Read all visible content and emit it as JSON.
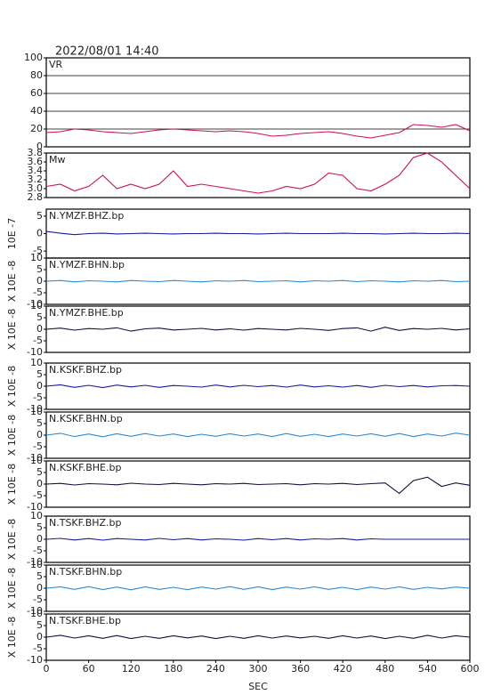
{
  "chart_data": [
    {
      "type": "line",
      "title": "2022/08/01  14:40",
      "x": [
        0,
        20,
        40,
        60,
        80,
        100,
        120,
        140,
        160,
        180,
        200,
        220,
        240,
        260,
        280,
        300,
        320,
        340,
        360,
        380,
        400,
        420,
        440,
        460,
        480,
        500,
        520,
        540,
        560,
        580,
        600
      ],
      "series": [
        {
          "name": "VR",
          "color": "#d0104c",
          "values": [
            16,
            17,
            20,
            19,
            17,
            16,
            15,
            17,
            19,
            20,
            19,
            18,
            17,
            18,
            17,
            15,
            12,
            13,
            15,
            16,
            17,
            15,
            12,
            10,
            13,
            16,
            25,
            24,
            22,
            25,
            18
          ]
        }
      ],
      "xlim": [
        0,
        600
      ],
      "ylim": [
        0,
        100
      ],
      "yticks": [
        0,
        20,
        40,
        60,
        80,
        100
      ],
      "grid": true
    },
    {
      "type": "line",
      "x": [
        0,
        20,
        40,
        60,
        80,
        100,
        120,
        140,
        160,
        180,
        200,
        220,
        240,
        260,
        280,
        300,
        320,
        340,
        360,
        380,
        400,
        420,
        440,
        460,
        480,
        500,
        520,
        540,
        560,
        580,
        600
      ],
      "series": [
        {
          "name": "Mw",
          "color": "#d0104c",
          "values": [
            3.05,
            3.1,
            2.95,
            3.05,
            3.3,
            3.0,
            3.1,
            3.0,
            3.1,
            3.4,
            3.05,
            3.1,
            3.05,
            3.0,
            2.95,
            2.9,
            2.95,
            3.05,
            3.0,
            3.1,
            3.35,
            3.3,
            3.0,
            2.95,
            3.1,
            3.3,
            3.7,
            3.8,
            3.6,
            3.3,
            3.0
          ]
        }
      ],
      "xlim": [
        0,
        600
      ],
      "ylim": [
        2.8,
        3.8
      ],
      "yticks": [
        2.8,
        {
          "value": 3,
          "label": "3.0"
        },
        3.2,
        3.4,
        3.6,
        3.8
      ]
    },
    {
      "type": "line",
      "ylabel": "10E -7",
      "x": [
        0,
        20,
        40,
        60,
        80,
        100,
        120,
        140,
        160,
        180,
        200,
        220,
        240,
        260,
        280,
        300,
        320,
        340,
        360,
        380,
        400,
        420,
        440,
        460,
        480,
        500,
        520,
        540,
        560,
        580,
        600
      ],
      "series": [
        {
          "name": "N.YMZF.BHZ.bp",
          "color": "#1a1aa0",
          "values": [
            0.6,
            0.1,
            -0.3,
            0,
            0.1,
            -0.1,
            0,
            0.1,
            0,
            -0.1,
            0,
            0,
            0.1,
            0,
            0,
            -0.1,
            0,
            0.1,
            0,
            0,
            0,
            0.1,
            0,
            0,
            -0.1,
            0,
            0.1,
            0,
            0,
            0.1,
            0
          ]
        }
      ],
      "xlim": [
        0,
        600
      ],
      "ylim": [
        -7,
        7
      ],
      "yticks": [
        -5,
        0,
        5
      ]
    },
    {
      "type": "line",
      "ylabel": "X 10E -8",
      "x": [
        0,
        20,
        40,
        60,
        80,
        100,
        120,
        140,
        160,
        180,
        200,
        220,
        240,
        260,
        280,
        300,
        320,
        340,
        360,
        380,
        400,
        420,
        440,
        460,
        480,
        500,
        520,
        540,
        560,
        580,
        600
      ],
      "series": [
        {
          "name": "N.YMZF.BHN.bp",
          "color": "#2a8ad8",
          "values": [
            0,
            0.3,
            -0.3,
            0.2,
            0,
            -0.3,
            0.3,
            0,
            -0.2,
            0.3,
            0,
            -0.3,
            0.2,
            0,
            0.3,
            -0.2,
            0,
            0.2,
            -0.3,
            0.2,
            0,
            0.3,
            -0.2,
            0.2,
            0,
            -0.3,
            0.2,
            0,
            0.3,
            -0.2,
            0
          ]
        }
      ],
      "xlim": [
        0,
        600
      ],
      "ylim": [
        -10,
        10
      ],
      "yticks": [
        -10,
        -5,
        0,
        5,
        10
      ]
    },
    {
      "type": "line",
      "ylabel": "X 10E -8",
      "x": [
        0,
        20,
        40,
        60,
        80,
        100,
        120,
        140,
        160,
        180,
        200,
        220,
        240,
        260,
        280,
        300,
        320,
        340,
        360,
        380,
        400,
        420,
        440,
        460,
        480,
        500,
        520,
        540,
        560,
        580,
        600
      ],
      "series": [
        {
          "name": "N.YMZF.BHE.bp",
          "color": "#101040",
          "values": [
            0,
            0.5,
            -0.4,
            0.3,
            0,
            0.6,
            -0.8,
            0.2,
            0.5,
            -0.3,
            0,
            0.4,
            -0.3,
            0.2,
            -0.4,
            0.3,
            0,
            -0.3,
            0.4,
            0,
            -0.5,
            0.3,
            0.6,
            -0.8,
            0.9,
            -0.5,
            0.3,
            0,
            0.4,
            -0.3,
            0.2
          ]
        }
      ],
      "xlim": [
        0,
        600
      ],
      "ylim": [
        -10,
        10
      ],
      "yticks": [
        -10,
        -5,
        0,
        5,
        10
      ]
    },
    {
      "type": "line",
      "ylabel": "X 10E -8",
      "x": [
        0,
        20,
        40,
        60,
        80,
        100,
        120,
        140,
        160,
        180,
        200,
        220,
        240,
        260,
        280,
        300,
        320,
        340,
        360,
        380,
        400,
        420,
        440,
        460,
        480,
        500,
        520,
        540,
        560,
        580,
        600
      ],
      "series": [
        {
          "name": "N.KSKF.BHZ.bp",
          "color": "#1a1aa0",
          "values": [
            0,
            0.6,
            -0.5,
            0.4,
            -0.6,
            0.5,
            -0.3,
            0.4,
            -0.5,
            0.3,
            0,
            -0.4,
            0.5,
            -0.3,
            0.4,
            -0.2,
            0.3,
            -0.4,
            0.5,
            -0.3,
            0.2,
            -0.4,
            0.3,
            -0.5,
            0.4,
            -0.2,
            0.3,
            -0.3,
            0.2,
            0.3,
            0
          ]
        }
      ],
      "xlim": [
        0,
        600
      ],
      "ylim": [
        -10,
        10
      ],
      "yticks": [
        -10,
        -5,
        0,
        5,
        10
      ]
    },
    {
      "type": "line",
      "ylabel": "X 10E -8",
      "x": [
        0,
        20,
        40,
        60,
        80,
        100,
        120,
        140,
        160,
        180,
        200,
        220,
        240,
        260,
        280,
        300,
        320,
        340,
        360,
        380,
        400,
        420,
        440,
        460,
        480,
        500,
        520,
        540,
        560,
        580,
        600
      ],
      "series": [
        {
          "name": "N.KSKF.BHN.bp",
          "color": "#2a8ad8",
          "values": [
            0,
            0.8,
            -0.6,
            0.5,
            -0.7,
            0.6,
            -0.5,
            0.7,
            -0.4,
            0.5,
            -0.6,
            0.4,
            -0.5,
            0.6,
            -0.4,
            0.5,
            -0.6,
            0.7,
            -0.5,
            0.4,
            -0.6,
            0.5,
            -0.4,
            0.6,
            -0.5,
            0.7,
            -0.6,
            0.5,
            -0.4,
            0.9,
            0
          ]
        }
      ],
      "xlim": [
        0,
        600
      ],
      "ylim": [
        -10,
        10
      ],
      "yticks": [
        -10,
        -5,
        0,
        5,
        10
      ]
    },
    {
      "type": "line",
      "ylabel": "X 10E -8",
      "x": [
        0,
        20,
        40,
        60,
        80,
        100,
        120,
        140,
        160,
        180,
        200,
        220,
        240,
        260,
        280,
        300,
        320,
        340,
        360,
        380,
        400,
        420,
        440,
        460,
        480,
        500,
        520,
        540,
        560,
        580,
        600
      ],
      "series": [
        {
          "name": "N.KSKF.BHE.bp",
          "color": "#101040",
          "values": [
            0,
            0.3,
            -0.4,
            0.2,
            0,
            -0.3,
            0.4,
            0,
            -0.2,
            0.3,
            0,
            -0.3,
            0.2,
            0,
            0.3,
            -0.2,
            0,
            0.2,
            -0.3,
            0.2,
            0,
            0.3,
            -0.2,
            0.2,
            0.5,
            -4,
            1.5,
            3,
            -1,
            0.5,
            -0.5
          ]
        }
      ],
      "xlim": [
        0,
        600
      ],
      "ylim": [
        -10,
        10
      ],
      "yticks": [
        -10,
        -5,
        0,
        5,
        10
      ]
    },
    {
      "type": "line",
      "ylabel": "X 10E -8",
      "x": [
        0,
        20,
        40,
        60,
        80,
        100,
        120,
        140,
        160,
        180,
        200,
        220,
        240,
        260,
        280,
        300,
        320,
        340,
        360,
        380,
        400,
        420,
        440,
        460,
        480,
        500,
        520,
        540,
        560,
        580,
        600
      ],
      "series": [
        {
          "name": "N.TSKF.BHZ.bp",
          "color": "#1a1aa0",
          "values": [
            0,
            0.4,
            -0.3,
            0.3,
            -0.4,
            0.3,
            0,
            -0.3,
            0.4,
            -0.2,
            0.3,
            -0.3,
            0.2,
            0,
            -0.4,
            0.3,
            -0.2,
            0.3,
            -0.3,
            0.2,
            0,
            0.3,
            -0.3,
            0.2,
            0,
            0,
            0,
            0,
            0,
            0,
            0
          ]
        }
      ],
      "xlim": [
        0,
        600
      ],
      "ylim": [
        -10,
        10
      ],
      "yticks": [
        -10,
        -5,
        0,
        5,
        10
      ]
    },
    {
      "type": "line",
      "ylabel": "X 10E -8",
      "x": [
        0,
        20,
        40,
        60,
        80,
        100,
        120,
        140,
        160,
        180,
        200,
        220,
        240,
        260,
        280,
        300,
        320,
        340,
        360,
        380,
        400,
        420,
        440,
        460,
        480,
        500,
        520,
        540,
        560,
        580,
        600
      ],
      "series": [
        {
          "name": "N.TSKF.BHN.bp",
          "color": "#2a8ad8",
          "values": [
            0,
            0.6,
            -0.5,
            0.7,
            -0.6,
            0.5,
            -0.7,
            0.6,
            -0.5,
            0.4,
            -0.6,
            0.5,
            -0.4,
            0.7,
            -0.5,
            0.6,
            -0.6,
            0.5,
            -0.4,
            0.6,
            -0.5,
            0.4,
            -0.6,
            0.5,
            -0.4,
            0.6,
            -0.5,
            0.4,
            -0.3,
            0.5,
            0
          ]
        }
      ],
      "xlim": [
        0,
        600
      ],
      "ylim": [
        -10,
        10
      ],
      "yticks": [
        -10,
        -5,
        0,
        5,
        10
      ]
    },
    {
      "type": "line",
      "ylabel": "X 10E -8",
      "xlabel": "SEC",
      "x": [
        0,
        20,
        40,
        60,
        80,
        100,
        120,
        140,
        160,
        180,
        200,
        220,
        240,
        260,
        280,
        300,
        320,
        340,
        360,
        380,
        400,
        420,
        440,
        460,
        480,
        500,
        520,
        540,
        560,
        580,
        600
      ],
      "series": [
        {
          "name": "N.TSKF.BHE.bp",
          "color": "#101040",
          "values": [
            0,
            0.8,
            -0.4,
            0.6,
            -0.5,
            0.7,
            -0.6,
            0.4,
            -0.5,
            0.6,
            -0.3,
            0.5,
            -0.6,
            0.4,
            -0.5,
            0.6,
            -0.4,
            0.5,
            -0.3,
            0.4,
            -0.5,
            0.6,
            -0.4,
            0.5,
            -0.6,
            0.4,
            -0.5,
            0.8,
            -0.4,
            0.6,
            0
          ]
        }
      ],
      "xlim": [
        0,
        600
      ],
      "ylim": [
        -10,
        10
      ],
      "xticks": [
        0,
        60,
        120,
        180,
        240,
        300,
        360,
        420,
        480,
        540,
        600
      ],
      "yticks": [
        -10,
        -5,
        0,
        5,
        10
      ]
    }
  ]
}
